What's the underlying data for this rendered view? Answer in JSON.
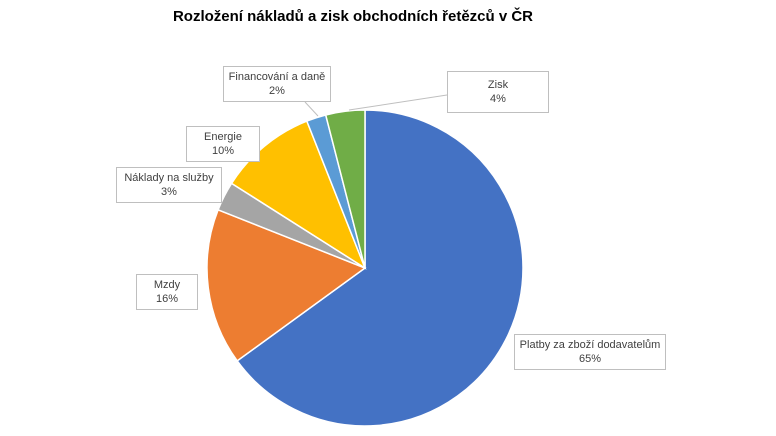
{
  "chart_data": {
    "type": "pie",
    "title": "Rozložení nákladů a zisk obchodních řetězců v ČR",
    "start_angle_deg": 0,
    "direction": "clockwise",
    "legend": "none",
    "slices": [
      {
        "name": "Platby za zboží dodavatelům",
        "value": 65,
        "label": "65%",
        "color": "#4472C4"
      },
      {
        "name": "Mzdy",
        "value": 16,
        "label": "16%",
        "color": "#ED7D31"
      },
      {
        "name": "Náklady na služby",
        "value": 3,
        "label": "3%",
        "color": "#A5A5A5"
      },
      {
        "name": "Energie",
        "value": 10,
        "label": "10%",
        "color": "#FFC000"
      },
      {
        "name": "Financování a daně",
        "value": 2,
        "label": "2%",
        "color": "#5B9BD5"
      },
      {
        "name": "Zisk",
        "value": 4,
        "label": "4%",
        "color": "#70AD47"
      }
    ]
  }
}
